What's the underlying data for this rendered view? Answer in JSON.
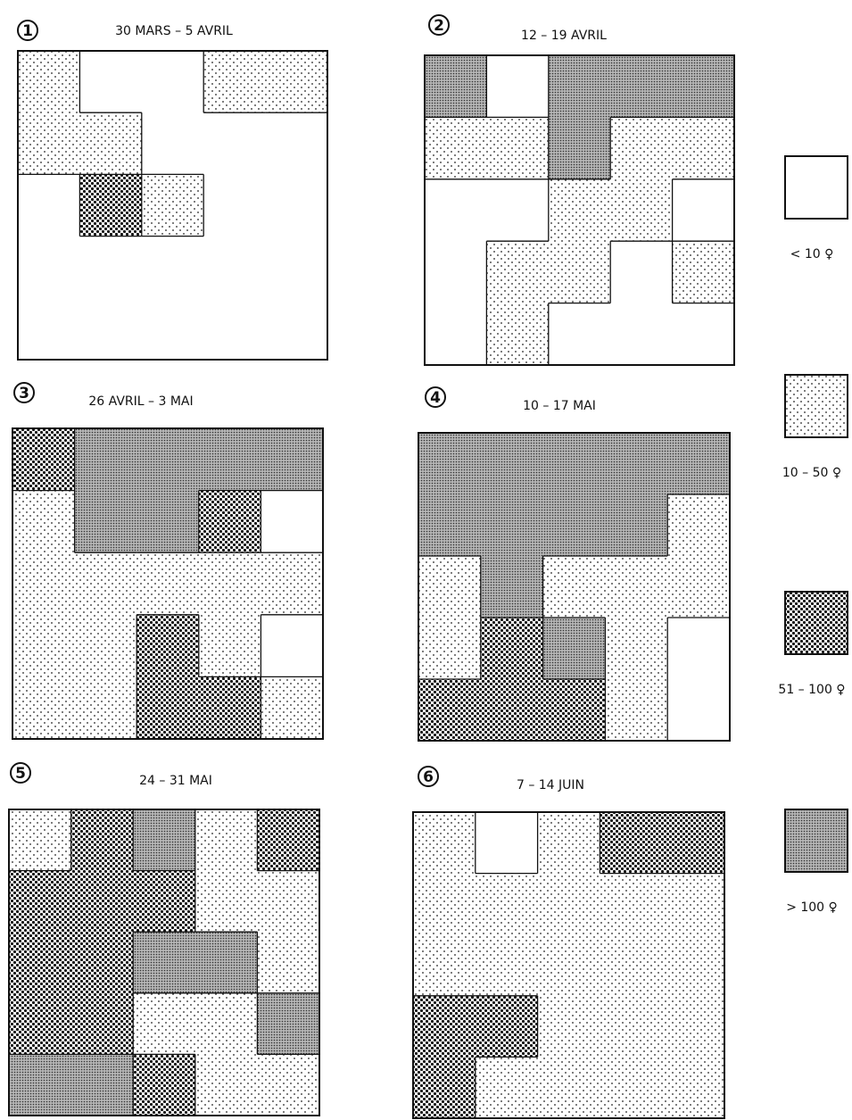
{
  "panels": [
    {
      "number": "1",
      "dates": "30  MARS  –  5  AVRIL",
      "cells": [
        [
          1,
          0,
          0,
          1,
          1
        ],
        [
          1,
          1,
          0,
          0,
          0
        ],
        [
          0,
          2,
          1,
          0,
          0
        ],
        [
          0,
          0,
          0,
          0,
          0
        ],
        [
          0,
          0,
          0,
          0,
          0
        ]
      ]
    },
    {
      "number": "2",
      "dates": "12  –  19  AVRIL",
      "cells": [
        [
          3,
          0,
          3,
          3,
          3
        ],
        [
          1,
          1,
          3,
          1,
          1
        ],
        [
          0,
          0,
          1,
          1,
          0
        ],
        [
          0,
          1,
          1,
          0,
          1
        ],
        [
          0,
          1,
          0,
          0,
          0
        ]
      ]
    },
    {
      "number": "3",
      "dates": "26  AVRIL  –  3  MAI",
      "cells": [
        [
          2,
          3,
          3,
          3,
          3
        ],
        [
          1,
          3,
          3,
          2,
          0
        ],
        [
          1,
          1,
          1,
          1,
          1
        ],
        [
          1,
          1,
          2,
          1,
          0
        ],
        [
          1,
          1,
          2,
          2,
          1
        ]
      ]
    },
    {
      "number": "4",
      "dates": "10  –  17  MAI",
      "cells": [
        [
          3,
          3,
          3,
          3,
          3
        ],
        [
          3,
          3,
          3,
          3,
          1
        ],
        [
          1,
          3,
          1,
          1,
          1
        ],
        [
          1,
          2,
          3,
          1,
          0
        ],
        [
          2,
          2,
          2,
          1,
          0
        ]
      ]
    },
    {
      "number": "5",
      "dates": "24  –  31  MAI",
      "cells": [
        [
          1,
          2,
          3,
          1,
          2
        ],
        [
          2,
          2,
          2,
          1,
          1
        ],
        [
          2,
          2,
          3,
          3,
          1
        ],
        [
          2,
          2,
          1,
          1,
          3
        ],
        [
          3,
          3,
          2,
          1,
          1
        ]
      ]
    },
    {
      "number": "6",
      "dates": "7  –  14  JUIN",
      "cells": [
        [
          1,
          0,
          1,
          2,
          2
        ],
        [
          1,
          1,
          1,
          1,
          1
        ],
        [
          1,
          1,
          1,
          1,
          1
        ],
        [
          2,
          2,
          1,
          1,
          1
        ],
        [
          2,
          1,
          1,
          1,
          1
        ]
      ]
    }
  ],
  "legend": [
    {
      "label": "< 10 ♀"
    },
    {
      "label": "10 – 50 ♀"
    },
    {
      "label": "51 – 100 ♀"
    },
    {
      "label": "> 100 ♀"
    }
  ]
}
